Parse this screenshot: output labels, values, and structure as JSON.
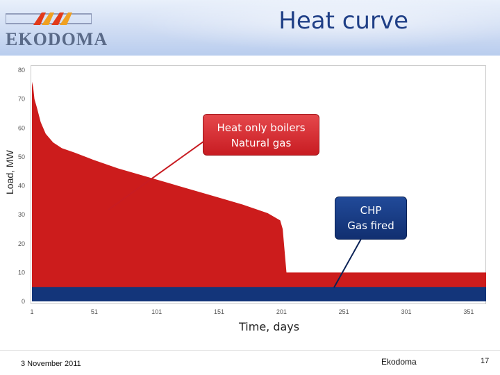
{
  "slide": {
    "title": "Heat curve",
    "logo_text": "EKODOMA",
    "date": "3 November 2011",
    "organization": "Ekodoma",
    "page_number": "17"
  },
  "callouts": {
    "boilers": [
      "Heat only boilers",
      "Natural gas"
    ],
    "chp": [
      "CHP",
      "Gas fired"
    ]
  },
  "colors": {
    "boilers_area": "#cc1c1c",
    "chp_area": "#13357a",
    "title": "#1f3f86"
  },
  "chart_data": {
    "type": "area",
    "xlabel": "Time, days",
    "ylabel": "Load, MW",
    "xlim": [
      1,
      365
    ],
    "ylim": [
      0,
      80
    ],
    "x_ticks": [
      1,
      51,
      101,
      151,
      201,
      251,
      301,
      351
    ],
    "y_ticks": [
      0,
      10,
      20,
      30,
      40,
      50,
      60,
      70,
      80
    ],
    "grid": false,
    "series": [
      {
        "name": "Heat only boilers Natural gas",
        "color": "#cc1c1c",
        "x": [
          1,
          2,
          3,
          5,
          8,
          12,
          18,
          25,
          35,
          50,
          70,
          90,
          110,
          130,
          150,
          170,
          190,
          200,
          202,
          205,
          250,
          300,
          365
        ],
        "y": [
          76,
          74,
          70,
          67,
          62,
          58,
          55,
          53,
          51.5,
          49,
          46,
          43.5,
          41,
          38.5,
          36,
          33.5,
          30.5,
          28,
          25,
          10,
          10,
          10,
          10
        ]
      },
      {
        "name": "CHP Gas fired",
        "color": "#13357a",
        "x": [
          1,
          365
        ],
        "y": [
          5,
          5
        ]
      }
    ]
  }
}
